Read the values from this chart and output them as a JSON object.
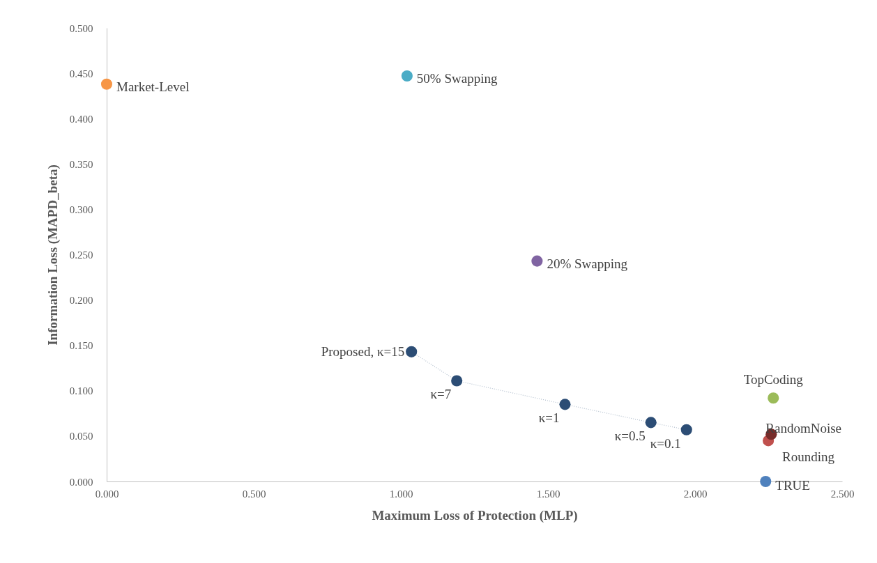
{
  "chart_data": {
    "type": "scatter",
    "xlabel": "Maximum Loss of Protection (MLP)",
    "ylabel": "Information Loss (MAPD_beta)",
    "xlim": [
      0,
      2.5
    ],
    "ylim": [
      0,
      0.5
    ],
    "xticks": [
      {
        "value": 0,
        "label": "0.000"
      },
      {
        "value": 0.5,
        "label": "0.500"
      },
      {
        "value": 1,
        "label": "1.000"
      },
      {
        "value": 1.5,
        "label": "1.500"
      },
      {
        "value": 2,
        "label": "2.000"
      },
      {
        "value": 2.5,
        "label": "2.500"
      }
    ],
    "yticks": [
      {
        "value": 0,
        "label": "0.000"
      },
      {
        "value": 0.05,
        "label": "0.050"
      },
      {
        "value": 0.1,
        "label": "0.100"
      },
      {
        "value": 0.15,
        "label": "0.150"
      },
      {
        "value": 0.2,
        "label": "0.200"
      },
      {
        "value": 0.25,
        "label": "0.250"
      },
      {
        "value": 0.3,
        "label": "0.300"
      },
      {
        "value": 0.35,
        "label": "0.350"
      },
      {
        "value": 0.4,
        "label": "0.400"
      },
      {
        "value": 0.45,
        "label": "0.450"
      },
      {
        "value": 0.5,
        "label": "0.500"
      }
    ],
    "grid": false,
    "legend": false,
    "marker": "circle",
    "series": [
      {
        "type": "line",
        "line_style": "dotted",
        "color": "#2c4d75",
        "x": [
          1.036,
          1.19,
          1.558,
          1.85,
          1.971
        ],
        "values": [
          0.143,
          0.111,
          0.085,
          0.065,
          0.057
        ]
      },
      {
        "name": "Market-Level",
        "color": "#f79646",
        "x": [
          0.0
        ],
        "values": [
          0.438
        ]
      },
      {
        "name": "50% Swapping",
        "color": "#4bacc6",
        "x": [
          1.021
        ],
        "values": [
          0.447
        ]
      },
      {
        "name": "20% Swapping",
        "color": "#8064a2",
        "x": [
          1.463
        ],
        "values": [
          0.243
        ]
      },
      {
        "name": "TopCoding",
        "color": "#9bbb59",
        "x": [
          2.266
        ],
        "values": [
          0.092
        ]
      },
      {
        "name": "Rounding",
        "color": "#c0504d",
        "x": [
          2.249
        ],
        "values": [
          0.045
        ]
      },
      {
        "name": "RandomNoise",
        "color": "#772c2a",
        "x": [
          2.259
        ],
        "values": [
          0.052
        ]
      },
      {
        "name": "TRUE",
        "color": "#4f81bd",
        "x": [
          2.24
        ],
        "values": [
          0.0
        ]
      }
    ],
    "annotations": [
      {
        "text": "Proposed, κ=15",
        "x": 1.036,
        "y": 0.143
      },
      {
        "text": "κ=7",
        "x": 1.19,
        "y": 0.111
      },
      {
        "text": "κ=1",
        "x": 1.558,
        "y": 0.085
      },
      {
        "text": "κ=0.5",
        "x": 1.85,
        "y": 0.065
      },
      {
        "text": "κ=0.1",
        "x": 1.971,
        "y": 0.057
      }
    ]
  }
}
